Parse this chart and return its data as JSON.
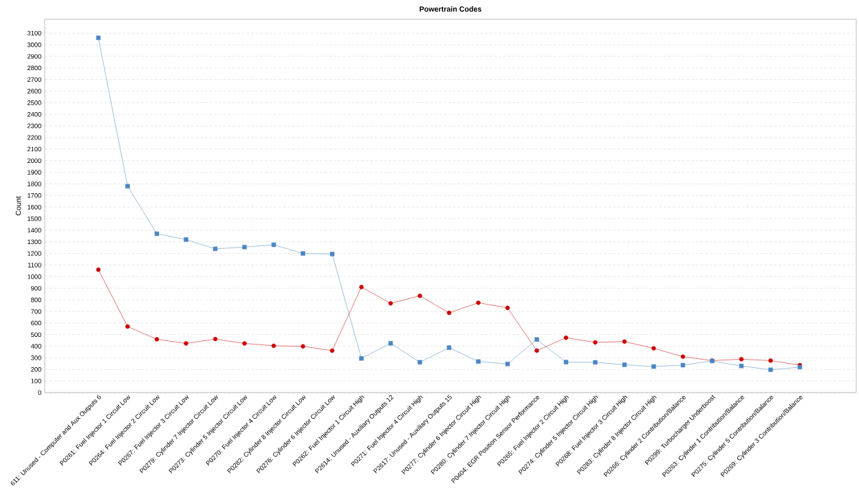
{
  "chart_data": {
    "type": "line",
    "title": "Powertrain Codes",
    "ylabel": "Count",
    "categories": [
      "611: Unused - Computer and Aux Outputs 6",
      "P0261: Fuel Injector 1 Circuit Low",
      "P0264: Fuel Injector 2 Circuit Low",
      "P0267: Fuel Injector 3 Circuit Low",
      "P0279: Cylinder 7 Injector Circuit Low",
      "P0273: Cylinder 5 Injector Circuit Low",
      "P0270: Fuel Injector 4 Circuit Low",
      "P0282: Cylinder 8 Injector Circuit Low",
      "P0276: Cylinder 6 Injector Circuit Low",
      "P0262: Fuel Injector 1 Circuit High",
      "P2614: Unused - Auxiliary Outputs 12",
      "P0271: Fuel Injector 4 Circuit High",
      "P2617: Unused - Auxiliary Outputs 15",
      "P0277: Cylinder 6 Injector Circuit High",
      "P0280: Cylinder 7 Injector Circuit High",
      "P0404: EGR Position Sensor Performance",
      "P0265: Fuel Injector 2 Circuit High",
      "P0274: Cylinder 5 Injector Circuit High",
      "P0268: Fuel Injector 3 Circuit High",
      "P0283: Cylinder 8 Injector Circuit High",
      "P0266: Cylinder 2 Contribution/Balance",
      "P0299: Turbocharger Underboost",
      "P0263: Cylinder 1 Contribution/Balance",
      "P0275: Cylinder 5 Contribution/Balance",
      "P0269: Cylinder 3 Contribution/Balance"
    ],
    "series": [
      {
        "color": "#4a87c4",
        "marker": "square",
        "values": [
          3060,
          1780,
          1370,
          1320,
          1240,
          1255,
          1275,
          1200,
          1195,
          295,
          425,
          262,
          388,
          268,
          247,
          458,
          263,
          261,
          240,
          225,
          237,
          273,
          230,
          197,
          220
        ]
      },
      {
        "color": "#cc0000",
        "marker": "circle",
        "values": [
          1060,
          570,
          460,
          424,
          462,
          424,
          404,
          399,
          362,
          910,
          770,
          835,
          688,
          775,
          731,
          362,
          473,
          433,
          440,
          382,
          310,
          276,
          288,
          276,
          237
        ]
      }
    ],
    "ylim": [
      0,
      3220
    ],
    "yticks": [
      0,
      100,
      200,
      300,
      400,
      500,
      600,
      700,
      800,
      900,
      1000,
      1100,
      1200,
      1300,
      1400,
      1500,
      1600,
      1700,
      1800,
      1900,
      2000,
      2100,
      2200,
      2300,
      2400,
      2500,
      2600,
      2700,
      2800,
      2900,
      3000,
      3100
    ],
    "grid": "y",
    "line_style": "solid"
  }
}
